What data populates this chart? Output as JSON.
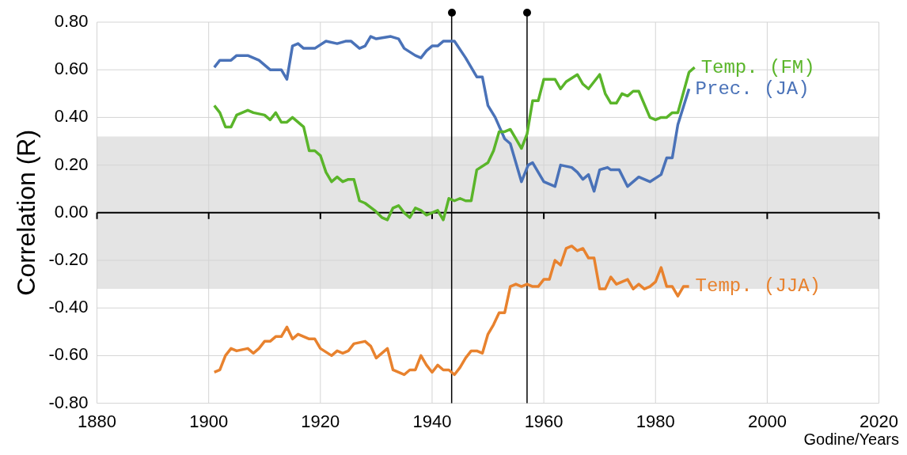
{
  "chart_data": {
    "type": "line",
    "xlabel": "Godine/Years",
    "ylabel": "Correlation (R)",
    "xlim": [
      1880,
      2020
    ],
    "xticks": [
      1880,
      1900,
      1920,
      1940,
      1960,
      1980,
      2000,
      2020
    ],
    "ylim": [
      -0.8,
      0.8
    ],
    "yticks": [
      {
        "value": -0.8,
        "label": "-0.80"
      },
      {
        "value": -0.6,
        "label": "-0.60"
      },
      {
        "value": -0.4,
        "label": "-0.40"
      },
      {
        "value": -0.2,
        "label": "-0.20"
      },
      {
        "value": 0,
        "label": "0.00"
      },
      {
        "value": 0.2,
        "label": "0.20"
      },
      {
        "value": 0.4,
        "label": "0.40"
      },
      {
        "value": 0.6,
        "label": "0.60"
      },
      {
        "value": 0.8,
        "label": "0.80"
      }
    ],
    "grid": true,
    "legend": false,
    "marker": "none",
    "line_style": "solid",
    "bands": [
      {
        "axis": "y",
        "from": -0.32,
        "to": 0.32,
        "color": "#e4e4e4"
      }
    ],
    "ref_lines": [
      {
        "axis": "x",
        "value": 1943.5,
        "color": "#000000"
      },
      {
        "axis": "x",
        "value": 1957,
        "color": "#000000"
      }
    ],
    "series": [
      {
        "name": "Temp. (FM)",
        "color": "#5ab52a",
        "x": [
          1901,
          1902,
          1903,
          1904,
          1905,
          1906,
          1907,
          1908,
          1910,
          1911,
          1912,
          1913,
          1914,
          1915,
          1917,
          1918,
          1919,
          1920,
          1921,
          1922,
          1923,
          1924,
          1925,
          1926,
          1927,
          1928,
          1929.7,
          1931,
          1932,
          1933,
          1934,
          1935,
          1936,
          1937,
          1938,
          1939,
          1941,
          1942,
          1943,
          1944,
          1945,
          1946,
          1947,
          1948,
          1950,
          1951,
          1952,
          1953,
          1954,
          1955,
          1956,
          1957,
          1958,
          1959,
          1960,
          1962,
          1963,
          1964,
          1966,
          1967,
          1968,
          1970,
          1971,
          1972,
          1973,
          1974,
          1975,
          1976,
          1977,
          1979,
          1980,
          1981,
          1982,
          1983,
          1984,
          1986,
          1987
        ],
        "values": [
          0.45,
          0.42,
          0.36,
          0.36,
          0.41,
          0.42,
          0.43,
          0.42,
          0.41,
          0.39,
          0.42,
          0.38,
          0.38,
          0.4,
          0.36,
          0.26,
          0.26,
          0.24,
          0.17,
          0.13,
          0.15,
          0.13,
          0.14,
          0.14,
          0.05,
          0.04,
          0.01,
          -0.02,
          -0.03,
          0.02,
          0.03,
          0,
          -0.02,
          0.02,
          0.01,
          -0.01,
          0.01,
          -0.03,
          0.06,
          0.05,
          0.06,
          0.05,
          0.05,
          0.18,
          0.21,
          0.26,
          0.34,
          0.34,
          0.35,
          0.31,
          0.27,
          0.33,
          0.47,
          0.47,
          0.56,
          0.56,
          0.52,
          0.55,
          0.58,
          0.54,
          0.52,
          0.58,
          0.5,
          0.46,
          0.46,
          0.5,
          0.49,
          0.51,
          0.51,
          0.4,
          0.39,
          0.4,
          0.4,
          0.42,
          0.42,
          0.59,
          0.61
        ]
      },
      {
        "name": "Prec. (JA)",
        "color": "#4a72b8",
        "x": [
          1901,
          1902,
          1904,
          1905,
          1907,
          1909,
          1911,
          1913,
          1914,
          1915,
          1916,
          1917,
          1919,
          1921,
          1923,
          1924.5,
          1925.5,
          1927,
          1928,
          1929,
          1930,
          1932.6,
          1934,
          1935,
          1937,
          1938,
          1939,
          1940,
          1941,
          1942,
          1944,
          1946,
          1948,
          1949,
          1950,
          1951.3,
          1953,
          1954,
          1956,
          1957.2,
          1958,
          1960,
          1962,
          1963,
          1965,
          1966,
          1967,
          1968,
          1969,
          1970,
          1971.4,
          1972,
          1973.5,
          1975,
          1977,
          1979,
          1981,
          1982,
          1983,
          1984,
          1986
        ],
        "values": [
          0.61,
          0.64,
          0.64,
          0.66,
          0.66,
          0.64,
          0.6,
          0.6,
          0.56,
          0.7,
          0.71,
          0.69,
          0.69,
          0.72,
          0.71,
          0.72,
          0.72,
          0.69,
          0.7,
          0.74,
          0.73,
          0.74,
          0.73,
          0.69,
          0.66,
          0.65,
          0.68,
          0.7,
          0.7,
          0.72,
          0.72,
          0.65,
          0.57,
          0.57,
          0.45,
          0.4,
          0.31,
          0.29,
          0.13,
          0.2,
          0.21,
          0.13,
          0.11,
          0.2,
          0.19,
          0.17,
          0.14,
          0.16,
          0.09,
          0.18,
          0.19,
          0.18,
          0.18,
          0.11,
          0.15,
          0.13,
          0.16,
          0.23,
          0.23,
          0.37,
          0.52
        ]
      },
      {
        "name": "Temp. (JJA)",
        "color": "#e8822e",
        "x": [
          1901,
          1902,
          1903,
          1904,
          1905,
          1907,
          1908,
          1909,
          1910,
          1911,
          1912,
          1913,
          1914,
          1915,
          1916,
          1917,
          1918,
          1919,
          1920,
          1922,
          1923,
          1924,
          1925,
          1926,
          1928,
          1929,
          1930,
          1932,
          1933,
          1935,
          1936,
          1937,
          1938,
          1939,
          1940,
          1941,
          1942,
          1943,
          1944,
          1945,
          1946,
          1947,
          1948,
          1949,
          1950,
          1951,
          1952,
          1953,
          1954,
          1955,
          1956,
          1957,
          1958,
          1959,
          1960,
          1961,
          1962,
          1963,
          1964,
          1965,
          1966,
          1967,
          1968,
          1969,
          1970,
          1971,
          1972,
          1973,
          1975,
          1976,
          1977,
          1978,
          1979,
          1980,
          1981,
          1982,
          1983,
          1984,
          1985,
          1986
        ],
        "values": [
          -0.67,
          -0.66,
          -0.6,
          -0.57,
          -0.58,
          -0.57,
          -0.59,
          -0.57,
          -0.54,
          -0.54,
          -0.52,
          -0.52,
          -0.48,
          -0.53,
          -0.51,
          -0.52,
          -0.53,
          -0.53,
          -0.57,
          -0.6,
          -0.58,
          -0.59,
          -0.58,
          -0.55,
          -0.54,
          -0.56,
          -0.61,
          -0.57,
          -0.66,
          -0.68,
          -0.66,
          -0.66,
          -0.6,
          -0.64,
          -0.67,
          -0.64,
          -0.66,
          -0.66,
          -0.68,
          -0.65,
          -0.61,
          -0.58,
          -0.58,
          -0.59,
          -0.51,
          -0.47,
          -0.42,
          -0.42,
          -0.31,
          -0.3,
          -0.31,
          -0.3,
          -0.31,
          -0.31,
          -0.28,
          -0.28,
          -0.2,
          -0.22,
          -0.15,
          -0.14,
          -0.16,
          -0.15,
          -0.19,
          -0.19,
          -0.32,
          -0.32,
          -0.27,
          -0.3,
          -0.28,
          -0.32,
          -0.3,
          -0.32,
          -0.31,
          -0.29,
          -0.23,
          -0.31,
          -0.31,
          -0.35,
          -0.31,
          -0.31
        ]
      }
    ]
  }
}
